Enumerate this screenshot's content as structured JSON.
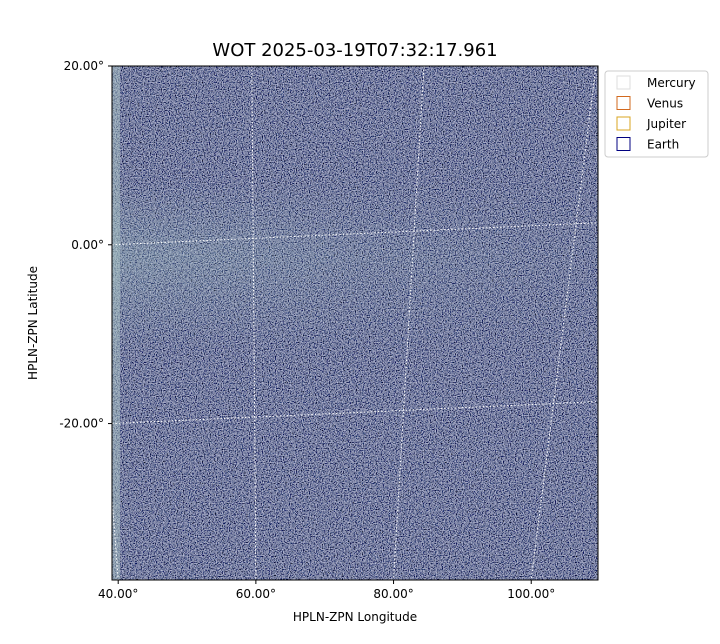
{
  "chart_data": {
    "type": "image",
    "title": "WOT 2025-03-19T07:32:17.961",
    "x_label": "HPLN-ZPN Longitude",
    "y_label": "HPLN-ZPN Latitude",
    "xlim": [
      39.1,
      109.7
    ],
    "ylim": [
      -37.5,
      20
    ],
    "xticks": [
      {
        "value": 40,
        "label": "40.00°"
      },
      {
        "value": 60,
        "label": "60.00°"
      },
      {
        "value": 80,
        "label": "80.00°"
      },
      {
        "value": 100,
        "label": "100.00°"
      }
    ],
    "yticks": [
      {
        "value": -20,
        "label": "-20.00°"
      },
      {
        "value": 0,
        "label": "0.00°"
      },
      {
        "value": 20,
        "label": "20.00°"
      }
    ],
    "grid": true,
    "legend_position": "upper-right-outside",
    "series": [
      {
        "name": "Mercury",
        "color": "#dddddd"
      },
      {
        "name": "Venus",
        "color": "#d2691e"
      },
      {
        "name": "Jupiter",
        "color": "#daa520"
      },
      {
        "name": "Earth",
        "color": "#000080"
      }
    ]
  }
}
